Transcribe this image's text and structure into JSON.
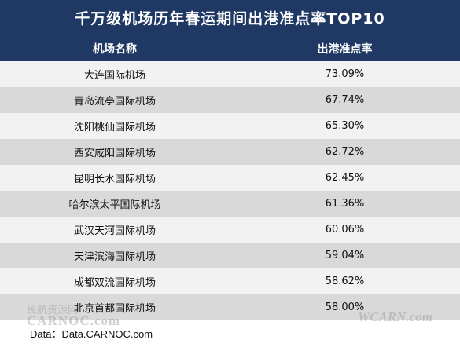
{
  "title": "千万级机场历年春运期间出港准点率TOP10",
  "table": {
    "headers": {
      "name": "机场名称",
      "rate": "出港准点率"
    },
    "rows": [
      {
        "name": "大连国际机场",
        "rate": "73.09%"
      },
      {
        "name": "青岛流亭国际机场",
        "rate": "67.74%"
      },
      {
        "name": "沈阳桃仙国际机场",
        "rate": "65.30%"
      },
      {
        "name": "西安咸阳国际机场",
        "rate": "62.72%"
      },
      {
        "name": "昆明长水国际机场",
        "rate": "62.45%"
      },
      {
        "name": "哈尔滨太平国际机场",
        "rate": "61.36%"
      },
      {
        "name": "武汉天河国际机场",
        "rate": "60.06%"
      },
      {
        "name": "天津滨海国际机场",
        "rate": "59.04%"
      },
      {
        "name": "成都双流国际机场",
        "rate": "58.62%"
      },
      {
        "name": "北京首都国际机场",
        "rate": "58.00%"
      }
    ]
  },
  "source": "Data：Data.CARNOC.com",
  "watermarks": {
    "left_cn": "民航资源网",
    "left_en": "CARNOC.com",
    "right": "WCARN.com"
  },
  "colors": {
    "header_bg": "#1f3864",
    "row_light": "#f2f2f2",
    "row_dark": "#d9d9d9"
  }
}
